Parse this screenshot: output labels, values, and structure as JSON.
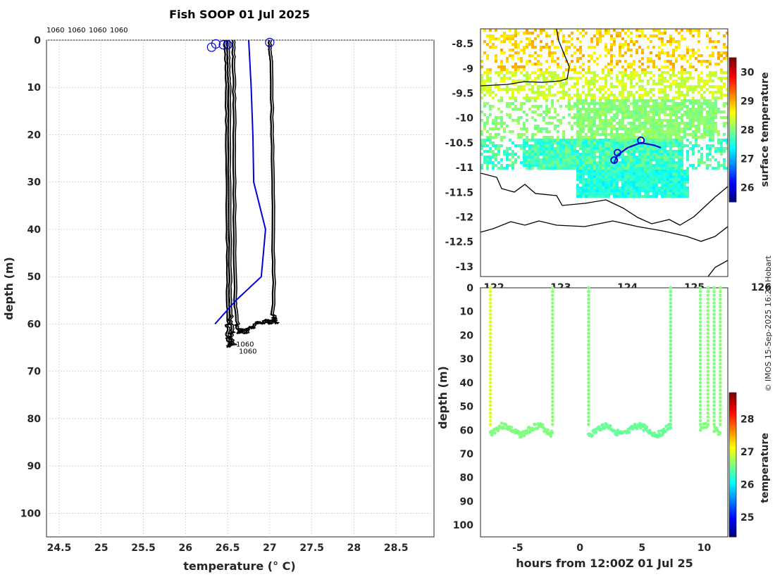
{
  "page": {
    "title": "Fish SOOP 01 Jul 2025",
    "credit": "© IMOS 15-Sep-2025 16:28 Hobart"
  },
  "colors": {
    "profile_black": "#000000",
    "profile_blue": "#0000dd",
    "land": "#ffffff",
    "grid": "#c8c8c8"
  },
  "chart_data": [
    {
      "id": "profiles",
      "type": "line",
      "title": "Fish SOOP 01 Jul 2025",
      "xlabel": "temperature (° C)",
      "ylabel": "depth (m)",
      "xlim": [
        24.35,
        28.95
      ],
      "ylim": [
        105,
        0
      ],
      "xticks": [
        24.5,
        25,
        25.5,
        26,
        26.5,
        27,
        27.5,
        28,
        28.5
      ],
      "yticks": [
        0,
        10,
        20,
        30,
        40,
        50,
        60,
        70,
        80,
        90,
        100
      ],
      "grid": true,
      "top_labels": [
        "1060",
        "1060",
        "1060",
        "1060"
      ],
      "bottom_labels": [
        "1060",
        "1060"
      ],
      "series": [
        {
          "name": "profile 1",
          "color": "#000000",
          "points": [
            [
              26.46,
              0
            ],
            [
              26.47,
              3
            ],
            [
              26.48,
              8
            ],
            [
              26.48,
              20
            ],
            [
              26.49,
              40
            ],
            [
              26.49,
              55
            ],
            [
              26.5,
              60
            ],
            [
              26.47,
              62
            ],
            [
              26.52,
              64
            ],
            [
              26.5,
              65
            ]
          ]
        },
        {
          "name": "profile 2",
          "color": "#000000",
          "points": [
            [
              26.5,
              0
            ],
            [
              26.5,
              5
            ],
            [
              26.51,
              10
            ],
            [
              26.51,
              30
            ],
            [
              26.52,
              50
            ],
            [
              26.52,
              58
            ],
            [
              26.55,
              61
            ],
            [
              26.53,
              63
            ],
            [
              26.57,
              64.5
            ]
          ]
        },
        {
          "name": "profile 3",
          "color": "#000000",
          "points": [
            [
              26.56,
              0
            ],
            [
              26.56,
              4
            ],
            [
              26.57,
              15
            ],
            [
              26.57,
              35
            ],
            [
              26.58,
              55
            ],
            [
              26.6,
              60
            ],
            [
              26.62,
              62
            ],
            [
              26.65,
              61
            ],
            [
              26.7,
              62
            ],
            [
              26.75,
              60.5
            ],
            [
              26.8,
              61
            ],
            [
              26.85,
              59.5
            ],
            [
              26.9,
              60
            ],
            [
              26.95,
              59
            ],
            [
              27.0,
              60
            ],
            [
              27.05,
              58.5
            ]
          ]
        },
        {
          "name": "profile 4",
          "color": "#000000",
          "points": [
            [
              26.99,
              0
            ],
            [
              26.99,
              2
            ],
            [
              27.01,
              5
            ],
            [
              27.02,
              20
            ],
            [
              27.03,
              40
            ],
            [
              27.04,
              58
            ],
            [
              27.06,
              60
            ]
          ]
        },
        {
          "name": "profile blue",
          "color": "#0000dd",
          "points": [
            [
              26.75,
              0
            ],
            [
              26.78,
              10
            ],
            [
              26.8,
              20
            ],
            [
              26.81,
              30
            ],
            [
              26.95,
              40
            ],
            [
              26.9,
              50
            ],
            [
              26.6,
              55
            ],
            [
              26.35,
              60
            ]
          ]
        }
      ],
      "markers": [
        [
          26.31,
          1.5
        ],
        [
          26.36,
          0.8
        ],
        [
          26.45,
          1.0
        ],
        [
          26.5,
          1.0
        ],
        [
          27.0,
          0.5
        ]
      ]
    },
    {
      "id": "sst_map",
      "type": "heatmap",
      "xlim": [
        121.8,
        125.5
      ],
      "ylim": [
        -13.2,
        -8.2
      ],
      "xticks": [
        122,
        123,
        124,
        125,
        126
      ],
      "yticks": [
        -8.5,
        -9,
        -9.5,
        -10,
        -10.5,
        -11,
        -11.5,
        -12,
        -12.5,
        -13
      ],
      "colorbar": {
        "label": "surface temperature",
        "range": [
          25.5,
          30.5
        ],
        "ticks": [
          26,
          27,
          28,
          29,
          30
        ]
      },
      "track": [
        [
          123.8,
          -10.9
        ],
        [
          123.85,
          -10.75
        ],
        [
          123.9,
          -10.7
        ],
        [
          124.0,
          -10.6
        ],
        [
          124.2,
          -10.5
        ],
        [
          124.4,
          -10.55
        ],
        [
          124.5,
          -10.6
        ]
      ],
      "track_markers": [
        [
          123.8,
          -10.85
        ],
        [
          123.85,
          -10.7
        ],
        [
          124.2,
          -10.45
        ]
      ]
    },
    {
      "id": "time_depth",
      "type": "scatter",
      "xlabel": "hours from 12:00Z 01 Jul 25",
      "ylabel": "depth (m)",
      "xlim": [
        -8,
        11.9
      ],
      "ylim": [
        105,
        0
      ],
      "xticks": [
        -5,
        0,
        5,
        10
      ],
      "yticks": [
        0,
        10,
        20,
        30,
        40,
        50,
        60,
        70,
        80,
        90,
        100
      ],
      "colorbar": {
        "label": "temperature",
        "range": [
          24.4,
          28.8
        ],
        "ticks": [
          25,
          26,
          27,
          28
        ]
      },
      "casts": [
        {
          "t_start": -7.2,
          "t_end": -2.2,
          "down_temp": 27.0,
          "bottom_temp": 26.6
        },
        {
          "t_start": 0.7,
          "t_end": 7.3,
          "down_temp": 26.6,
          "bottom_temp": 26.5
        },
        {
          "t_start": 9.7,
          "t_end": 10.3,
          "down_temp": 26.6,
          "bottom_temp": 26.6
        },
        {
          "t_start": 10.8,
          "t_end": 11.3,
          "down_temp": 26.6,
          "bottom_temp": 26.6
        }
      ]
    }
  ]
}
